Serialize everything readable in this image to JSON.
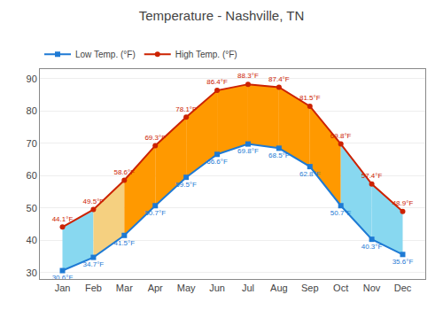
{
  "chart_data": {
    "type": "line",
    "title": "Temperature - Nashville, TN",
    "categories": [
      "Jan",
      "Feb",
      "Mar",
      "Apr",
      "May",
      "Jun",
      "Jul",
      "Aug",
      "Sep",
      "Oct",
      "Nov",
      "Dec"
    ],
    "series": [
      {
        "name": "Low Temp. (°F)",
        "color": "#1e7ad4",
        "marker": "square",
        "values": [
          30.6,
          34.7,
          41.5,
          50.7,
          59.5,
          66.6,
          69.8,
          68.5,
          62.8,
          50.7,
          40.3,
          35.6
        ],
        "value_labels": [
          "30.6°F",
          "34.7°F",
          "41.5°F",
          "50.7°F",
          "59.5°F",
          "66.6°F",
          "69.8°F",
          "68.5°F",
          "62.8°F",
          "50.7°F",
          "40.3°F",
          "35.6°F"
        ]
      },
      {
        "name": "High Temp. (°F)",
        "color": "#cc2200",
        "marker": "circle",
        "values": [
          44.1,
          49.5,
          58.6,
          69.3,
          78.1,
          86.4,
          88.3,
          87.4,
          81.5,
          69.8,
          57.4,
          48.9
        ],
        "value_labels": [
          "44.1°F",
          "49.5°F",
          "58.6°F",
          "69.3°F",
          "78.1°F",
          "86.4°F",
          "88.3°F",
          "87.4°F",
          "81.5°F",
          "69.8°F",
          "57.4°F",
          "48.9°F"
        ]
      }
    ],
    "colors": [
      "#88d8f0",
      "#f5d080",
      "#ff9900",
      "#ff9900",
      "#ff9900",
      "#ff9900",
      "#ff9900",
      "#ff9900",
      "#ff9900",
      "#88d8f0",
      "#88d8f0"
    ],
    "ylim": [
      28,
      93
    ],
    "yticks": [
      30,
      40,
      50,
      60,
      70,
      80,
      90
    ],
    "grid": true,
    "legend": "upper left",
    "data_labels": true
  }
}
